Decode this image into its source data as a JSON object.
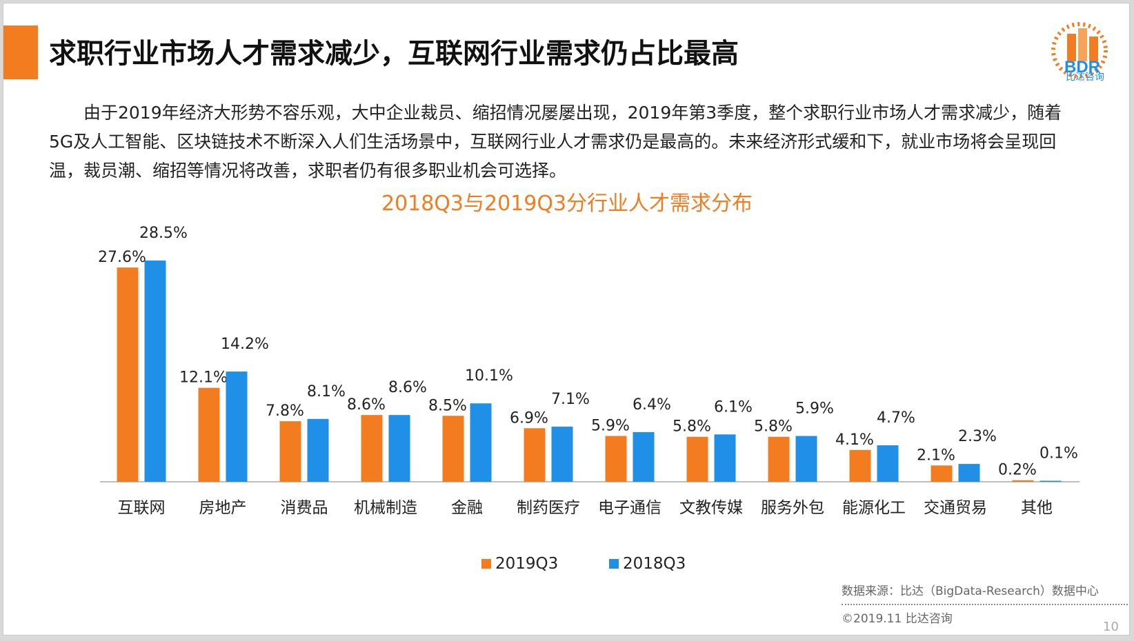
{
  "slide": {
    "title": "求职行业市场人才需求减少，互联网行业需求仍占比最高",
    "paragraph": "由于2019年经济大形势不容乐观，大中企业裁员、缩招情况屡屡出现，2019年第3季度，整个求职行业市场人才需求减少，随着5G及人工智能、区块链技术不断深入人们生活场景中，互联网行业人才需求仍是最高的。未来经济形式缓和下，就业市场将会呈现回温，裁员潮、缩招等情况将改善，求职者仍有很多职业机会可选择。",
    "source": "数据来源：比达（BigData-Research）数据中心",
    "copyright": "©2019.11 比达咨询",
    "page_number": "10",
    "logo": {
      "text": "BDR",
      "subtitle": "比达咨询"
    },
    "colors": {
      "accent": "#f47c20",
      "blue": "#1f8fe8"
    }
  },
  "chart_data": {
    "type": "bar",
    "title": "2018Q3与2019Q3分行业人才需求分布",
    "categories": [
      "互联网",
      "房地产",
      "消费品",
      "机械制造",
      "金融",
      "制药医疗",
      "电子通信",
      "文教传媒",
      "服务外包",
      "能源化工",
      "交通贸易",
      "其他"
    ],
    "series": [
      {
        "name": "2019Q3",
        "color": "#f47c20",
        "values": [
          27.6,
          12.1,
          7.8,
          8.6,
          8.5,
          6.9,
          5.9,
          5.8,
          5.8,
          4.1,
          2.1,
          0.2
        ],
        "labels": [
          "27.6%",
          "12.1%",
          "7.8%",
          "8.6%",
          "8.5%",
          "6.9%",
          "5.9%",
          "5.8%",
          "5.8%",
          "4.1%",
          "2.1%",
          "0.2%"
        ]
      },
      {
        "name": "2018Q3",
        "color": "#1f8fe8",
        "values": [
          28.5,
          14.2,
          8.1,
          8.6,
          10.1,
          7.1,
          6.4,
          6.1,
          5.9,
          4.7,
          2.3,
          0.1
        ],
        "labels": [
          "28.5%",
          "14.2%",
          "8.1%",
          "8.6%",
          "10.1%",
          "7.1%",
          "6.4%",
          "6.1%",
          "5.9%",
          "4.7%",
          "2.3%",
          "0.1%"
        ]
      }
    ],
    "unit": "%",
    "ylim": [
      0,
      28.5
    ],
    "grid": false,
    "legend": "bottom"
  }
}
